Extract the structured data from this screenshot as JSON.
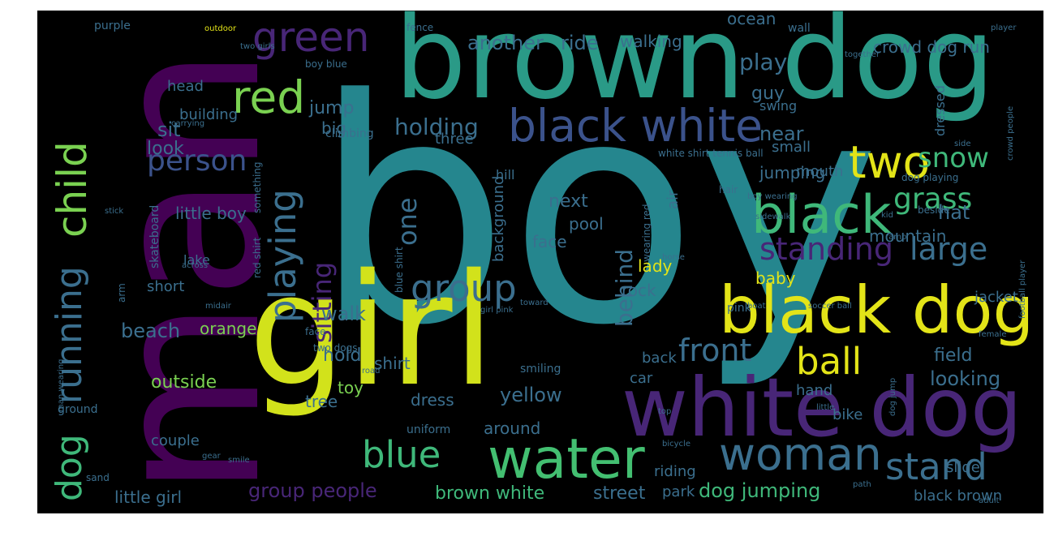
{
  "palette": {
    "teal": "#2a8c8c",
    "darkteal": "#21918c",
    "green": "#3fb87a",
    "lime": "#7ad151",
    "yellow": "#e3e418",
    "purple": "#472d7b",
    "violet": "#440154",
    "slate": "#3b528b"
  },
  "words": [
    {
      "text": "boy",
      "color": "#25868e"
    },
    {
      "text": "man",
      "color": "#440154"
    },
    {
      "text": "brown dog",
      "color": "#2a9a87"
    },
    {
      "text": "girl",
      "color": "#d2e21b"
    },
    {
      "text": "white dog",
      "color": "#482677"
    },
    {
      "text": "black dog",
      "color": "#e3e418"
    },
    {
      "text": "black white",
      "color": "#3b528b"
    },
    {
      "text": "black",
      "color": "#3fb87a"
    },
    {
      "text": "water",
      "color": "#43bf71"
    },
    {
      "text": "woman",
      "color": "#3b6f8e"
    },
    {
      "text": "child",
      "color": "#7ad151"
    },
    {
      "text": "running",
      "color": "#3b6f8e"
    },
    {
      "text": "dog",
      "color": "#3fb87a"
    },
    {
      "text": "red",
      "color": "#7ad151"
    },
    {
      "text": "green",
      "color": "#482677"
    },
    {
      "text": "two",
      "color": "#e3e418"
    },
    {
      "text": "group",
      "color": "#3b6f8e"
    },
    {
      "text": "blue",
      "color": "#3fb87a"
    },
    {
      "text": "stand",
      "color": "#3b6f8e"
    },
    {
      "text": "ball",
      "color": "#e3e418"
    },
    {
      "text": "playing",
      "color": "#3b6f8e"
    },
    {
      "text": "sitting",
      "color": "#482677"
    },
    {
      "text": "standing",
      "color": "#482677"
    },
    {
      "text": "large",
      "color": "#3b6f8e"
    },
    {
      "text": "front",
      "color": "#3b6f8e"
    },
    {
      "text": "person",
      "color": "#3b528b"
    },
    {
      "text": "grass",
      "color": "#3fb87a"
    },
    {
      "text": "snow",
      "color": "#3fb87a"
    },
    {
      "text": "holding",
      "color": "#3b6f8e"
    },
    {
      "text": "one",
      "color": "#3b6f8e"
    },
    {
      "text": "behind",
      "color": "#3b6f8e"
    },
    {
      "text": "play",
      "color": "#3b6f8e"
    },
    {
      "text": "another",
      "color": "#3b6f8e"
    },
    {
      "text": "ride",
      "color": "#3b6f8e"
    },
    {
      "text": "walking",
      "color": "#3b6f8e"
    },
    {
      "text": "ocean",
      "color": "#3b6f8e"
    },
    {
      "text": "crowd dog run",
      "color": "#3b6f8e"
    },
    {
      "text": "sit",
      "color": "#3b6f8e"
    },
    {
      "text": "look",
      "color": "#3b6f8e"
    },
    {
      "text": "near",
      "color": "#3b6f8e"
    },
    {
      "text": "guy",
      "color": "#3b6f8e"
    },
    {
      "text": "jump",
      "color": "#3b6f8e"
    },
    {
      "text": "building",
      "color": "#3b6f8e"
    },
    {
      "text": "head",
      "color": "#3b6f8e"
    },
    {
      "text": "walk",
      "color": "#3b6f8e"
    },
    {
      "text": "beach",
      "color": "#3b6f8e"
    },
    {
      "text": "hold",
      "color": "#3b6f8e"
    },
    {
      "text": "outside",
      "color": "#7ad151"
    },
    {
      "text": "orange",
      "color": "#7ad151"
    },
    {
      "text": "yellow",
      "color": "#3b6f8e"
    },
    {
      "text": "next",
      "color": "#3b6f8e"
    },
    {
      "text": "pool",
      "color": "#3b6f8e"
    },
    {
      "text": "face",
      "color": "#3b6f8e"
    },
    {
      "text": "jumping",
      "color": "#3b6f8e"
    },
    {
      "text": "hat",
      "color": "#3b6f8e"
    },
    {
      "text": "mountain",
      "color": "#3b6f8e"
    },
    {
      "text": "jacket",
      "color": "#3b6f8e"
    },
    {
      "text": "baby",
      "color": "#e3e418"
    },
    {
      "text": "lady",
      "color": "#e3e418"
    },
    {
      "text": "rock",
      "color": "#3b6f8e"
    },
    {
      "text": "field",
      "color": "#3b6f8e"
    },
    {
      "text": "looking",
      "color": "#3b6f8e"
    },
    {
      "text": "back",
      "color": "#3b6f8e"
    },
    {
      "text": "toy",
      "color": "#7ad151"
    },
    {
      "text": "shirt",
      "color": "#3b6f8e"
    },
    {
      "text": "tree",
      "color": "#3b6f8e"
    },
    {
      "text": "dress",
      "color": "#3b6f8e"
    },
    {
      "text": "around",
      "color": "#3b6f8e"
    },
    {
      "text": "couple",
      "color": "#3b6f8e"
    },
    {
      "text": "group people",
      "color": "#482677"
    },
    {
      "text": "brown white",
      "color": "#3fb87a"
    },
    {
      "text": "street",
      "color": "#3b6f8e"
    },
    {
      "text": "park",
      "color": "#3b6f8e"
    },
    {
      "text": "dog jumping",
      "color": "#3fb87a"
    },
    {
      "text": "little girl",
      "color": "#3b6f8e"
    },
    {
      "text": "little boy",
      "color": "#3b6f8e"
    },
    {
      "text": "slide",
      "color": "#3b6f8e"
    },
    {
      "text": "riding",
      "color": "#3b6f8e"
    },
    {
      "text": "bike",
      "color": "#3b6f8e"
    },
    {
      "text": "hand",
      "color": "#3b6f8e"
    },
    {
      "text": "car",
      "color": "#3b6f8e"
    },
    {
      "text": "black brown",
      "color": "#3b6f8e"
    },
    {
      "text": "short",
      "color": "#3b6f8e"
    },
    {
      "text": "lake",
      "color": "#3b6f8e"
    },
    {
      "text": "big",
      "color": "#3b6f8e"
    },
    {
      "text": "three",
      "color": "#3b6f8e"
    },
    {
      "text": "small",
      "color": "#3b6f8e"
    },
    {
      "text": "mouth",
      "color": "#3b6f8e"
    },
    {
      "text": "dressed",
      "color": "#3b6f8e"
    },
    {
      "text": "swing",
      "color": "#3b6f8e"
    },
    {
      "text": "hill",
      "color": "#3b6f8e"
    },
    {
      "text": "air",
      "color": "#3b6f8e"
    },
    {
      "text": "pink",
      "color": "#3b6f8e"
    },
    {
      "text": "smiling",
      "color": "#3b6f8e"
    },
    {
      "text": "uniform",
      "color": "#3b6f8e"
    },
    {
      "text": "background",
      "color": "#3b6f8e"
    },
    {
      "text": "ground",
      "color": "#3b6f8e"
    },
    {
      "text": "sand",
      "color": "#3b6f8e"
    },
    {
      "text": "skateboard",
      "color": "#3b6f8e"
    },
    {
      "text": "climbing",
      "color": "#3b6f8e"
    },
    {
      "text": "purple",
      "color": "#3b6f8e"
    },
    {
      "text": "fence",
      "color": "#3b6f8e"
    },
    {
      "text": "wall",
      "color": "#3b6f8e"
    },
    {
      "text": "two girls",
      "color": "#3b6f8e"
    },
    {
      "text": "boy blue",
      "color": "#3b6f8e"
    },
    {
      "text": "white shirt tennis ball",
      "color": "#3b6f8e"
    },
    {
      "text": "dog playing",
      "color": "#3b6f8e"
    },
    {
      "text": "something",
      "color": "#3b6f8e"
    },
    {
      "text": "two dogs",
      "color": "#3b6f8e"
    },
    {
      "text": "red shirt",
      "color": "#3b6f8e"
    },
    {
      "text": "blue shirt",
      "color": "#3b6f8e"
    },
    {
      "text": "face",
      "color": "#3b6f8e"
    },
    {
      "text": "hair",
      "color": "#3b6f8e"
    },
    {
      "text": "wearing red",
      "color": "#3b6f8e"
    },
    {
      "text": "beside",
      "color": "#3b6f8e"
    },
    {
      "text": "boy wearing",
      "color": "#3b6f8e"
    },
    {
      "text": "sidewalk",
      "color": "#3b6f8e"
    },
    {
      "text": "kid",
      "color": "#3b6f8e"
    },
    {
      "text": "ramp",
      "color": "#3b6f8e"
    },
    {
      "text": "top",
      "color": "#3b6f8e"
    },
    {
      "text": "midair",
      "color": "#3b6f8e"
    },
    {
      "text": "road",
      "color": "#3b6f8e"
    },
    {
      "text": "toward",
      "color": "#3b6f8e"
    },
    {
      "text": "girl pink",
      "color": "#3b6f8e"
    },
    {
      "text": "soccer ball",
      "color": "#3b6f8e"
    },
    {
      "text": "player",
      "color": "#3b6f8e"
    },
    {
      "text": "bicycle",
      "color": "#3b6f8e"
    },
    {
      "text": "little",
      "color": "#3b6f8e"
    },
    {
      "text": "path",
      "color": "#3b6f8e"
    },
    {
      "text": "female",
      "color": "#3b6f8e"
    },
    {
      "text": "adult",
      "color": "#3b6f8e"
    },
    {
      "text": "smile",
      "color": "#3b6f8e"
    },
    {
      "text": "outdoor",
      "color": "#e3e418"
    },
    {
      "text": "together",
      "color": "#3b6f8e"
    },
    {
      "text": "carrying",
      "color": "#3b6f8e"
    },
    {
      "text": "stick",
      "color": "#3b6f8e"
    },
    {
      "text": "across",
      "color": "#3b6f8e"
    },
    {
      "text": "man wearing",
      "color": "#3b6f8e"
    },
    {
      "text": "gear",
      "color": "#3b6f8e"
    },
    {
      "text": "horse",
      "color": "#3b6f8e"
    },
    {
      "text": "dog jump",
      "color": "#3b6f8e"
    },
    {
      "text": "boat",
      "color": "#3b6f8e"
    },
    {
      "text": "side",
      "color": "#3b6f8e"
    },
    {
      "text": "crowd people",
      "color": "#3b6f8e"
    },
    {
      "text": "football player",
      "color": "#3b6f8e"
    },
    {
      "text": "arm",
      "color": "#3b6f8e"
    }
  ]
}
